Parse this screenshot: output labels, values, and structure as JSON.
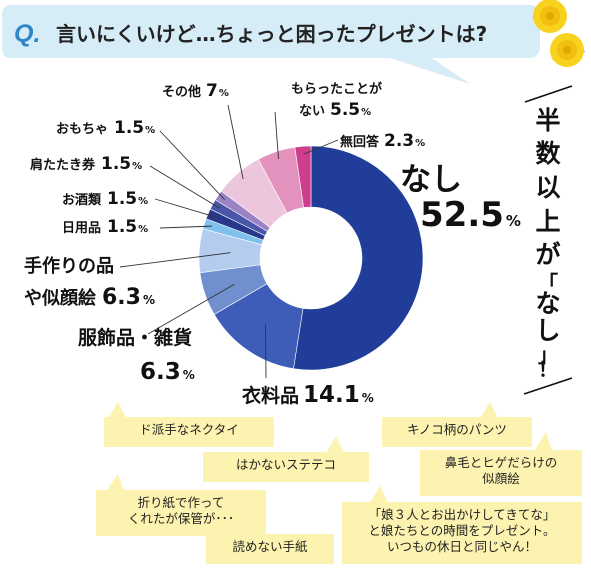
{
  "question": {
    "q_mark": "Q.",
    "text": "言いにくいけど…ちょっと困ったプレゼントは?"
  },
  "callout": {
    "lines": [
      "半",
      "数",
      "以",
      "上",
      "が",
      "「",
      "な",
      "し",
      "」",
      "！"
    ]
  },
  "colors": {
    "header_bg": "#d6ecf7",
    "q_mark": "#2f86c9",
    "sticky_bg": "#fdf3b0",
    "rose": "#f7d21e"
  },
  "chart_data": {
    "type": "pie",
    "title": "",
    "slices": [
      {
        "label": "なし",
        "value": 52.5,
        "display": "52.5",
        "color": "#1f3d99"
      },
      {
        "label": "衣料品",
        "value": 14.1,
        "display": "14.1",
        "color": "#3d5db8"
      },
      {
        "label": "服飾品・雑貨",
        "value": 6.3,
        "display": "6.3",
        "color": "#6f8fce"
      },
      {
        "label": "手作りの品や似顔絵",
        "value": 6.3,
        "display": "6.3",
        "color": "#b4cdee"
      },
      {
        "label": "日用品",
        "value": 1.5,
        "display": "1.5",
        "color": "#7fc0ec"
      },
      {
        "label": "お酒類",
        "value": 1.5,
        "display": "1.5",
        "color": "#27388a"
      },
      {
        "label": "肩たたき券",
        "value": 1.5,
        "display": "1.5",
        "color": "#4a56a8"
      },
      {
        "label": "おもちゃ",
        "value": 1.5,
        "display": "1.5",
        "color": "#9a82c3"
      },
      {
        "label": "その他",
        "value": 7,
        "display": "7",
        "color": "#ecc6dd"
      },
      {
        "label": "もらったことがない",
        "value": 5.5,
        "display": "5.5",
        "color": "#e392be"
      },
      {
        "label": "無回答",
        "value": 2.3,
        "display": "2.3",
        "color": "#cf3d8f"
      }
    ],
    "unit": "%"
  },
  "labels": {
    "nashi": {
      "name": "なし",
      "value": "52.5",
      "unit": "%"
    },
    "iryohin": {
      "name": "衣料品",
      "value": "14.1",
      "unit": "%"
    },
    "fukushoku": {
      "name": "服飾品・雑貨",
      "value": "6.3",
      "unit": "%"
    },
    "tezukuri_line1": "手作りの品",
    "tezukuri_line2": "や似顔絵",
    "tezukuri": {
      "value": "6.3",
      "unit": "%"
    },
    "nichiyohin": {
      "name": "日用品",
      "value": "1.5",
      "unit": "%"
    },
    "osake": {
      "name": "お酒類",
      "value": "1.5",
      "unit": "%"
    },
    "katatataki": {
      "name": "肩たたき券",
      "value": "1.5",
      "unit": "%"
    },
    "omocha": {
      "name": "おもちゃ",
      "value": "1.5",
      "unit": "%"
    },
    "sonota": {
      "name": "その他",
      "value": "7",
      "unit": "%"
    },
    "morattakoto_line1": "もらったことが",
    "morattakoto_line2": "ない",
    "morattakoto": {
      "value": "5.5",
      "unit": "%"
    },
    "mukaito": {
      "name": "無回答",
      "value": "2.3",
      "unit": "%"
    }
  },
  "notes": [
    "ド派手なネクタイ",
    "キノコ柄のパンツ",
    "はかないステテコ",
    "鼻毛とヒゲだらけの\n似顔絵",
    "折り紙で作って\nくれたが保管が･･･",
    "「娘３人とお出かけしてきてな」\nと娘たちとの時間をプレゼント。\nいつもの休日と同じやん！",
    "読めない手紙"
  ]
}
